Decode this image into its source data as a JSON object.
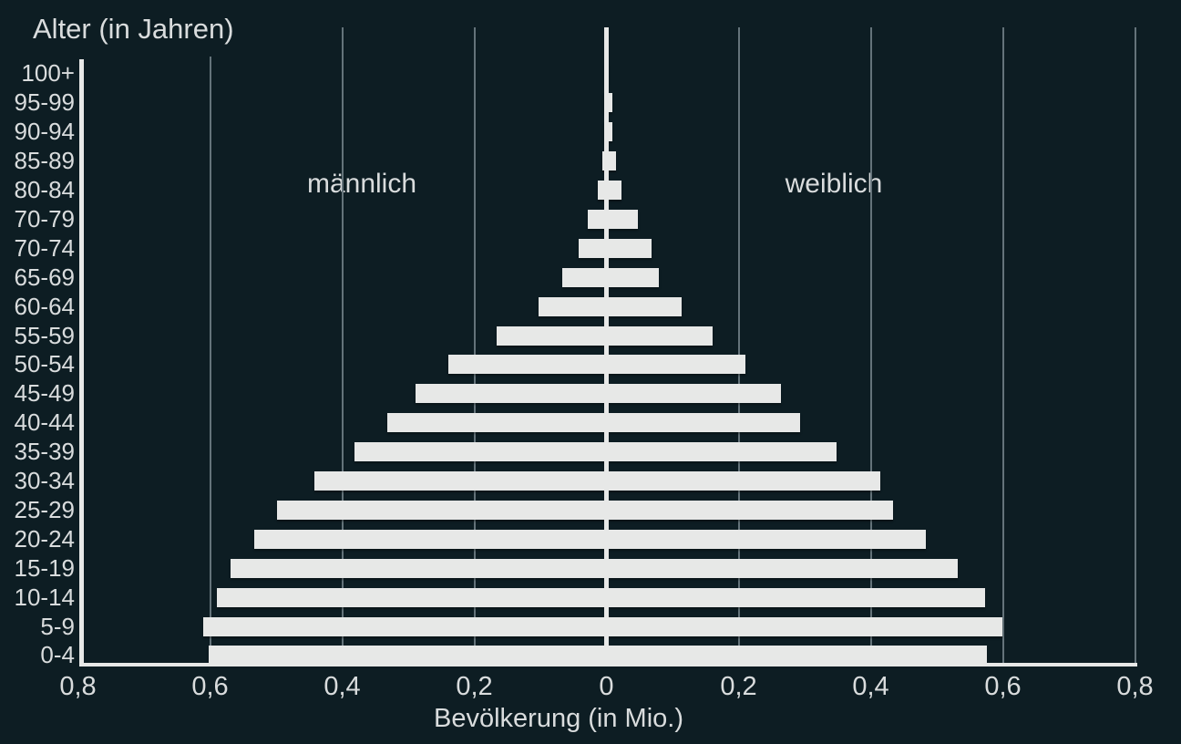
{
  "title": "Alter (in Jahren)",
  "x_axis_title": "Bevölkerung (in Mio.)",
  "side_labels": {
    "left": "männlich",
    "right": "weiblich"
  },
  "colors": {
    "background": "#0d1d23",
    "bar": "#e7e8e7",
    "text": "#d9dcdd",
    "grid": "#64737a",
    "axis": "#e7e8e7"
  },
  "chart_data": {
    "type": "bar",
    "variant": "population-pyramid",
    "title": "Alter (in Jahren)",
    "xlabel": "Bevölkerung (in Mio.)",
    "unit": "Mio.",
    "xlim": [
      -0.8,
      0.8
    ],
    "grid": true,
    "categories": [
      "100+",
      "95-99",
      "90-94",
      "85-89",
      "80-84",
      "70-79",
      "70-74",
      "65-69",
      "60-64",
      "55-59",
      "50-54",
      "45-49",
      "40-44",
      "35-39",
      "30-34",
      "25-29",
      "20-24",
      "15-19",
      "10-14",
      "5-9",
      "0-4"
    ],
    "series": [
      {
        "name": "männlich",
        "side": "left",
        "values": [
          0.002,
          0.003,
          0.004,
          0.006,
          0.013,
          0.028,
          0.042,
          0.067,
          0.103,
          0.166,
          0.239,
          0.289,
          0.332,
          0.381,
          0.442,
          0.499,
          0.533,
          0.569,
          0.59,
          0.61,
          0.602
        ]
      },
      {
        "name": "weiblich",
        "side": "right",
        "values": [
          0.002,
          0.009,
          0.009,
          0.014,
          0.023,
          0.048,
          0.068,
          0.079,
          0.114,
          0.161,
          0.21,
          0.264,
          0.293,
          0.348,
          0.414,
          0.434,
          0.483,
          0.532,
          0.573,
          0.599,
          0.576
        ]
      }
    ],
    "x_ticks": [
      {
        "value": -0.8,
        "label": "0,8"
      },
      {
        "value": -0.6,
        "label": "0,6"
      },
      {
        "value": -0.4,
        "label": "0,4"
      },
      {
        "value": -0.2,
        "label": "0,2"
      },
      {
        "value": 0,
        "label": "0"
      },
      {
        "value": 0.2,
        "label": "0,2"
      },
      {
        "value": 0.4,
        "label": "0,4"
      },
      {
        "value": 0.6,
        "label": "0,6"
      },
      {
        "value": 0.8,
        "label": "0,8"
      }
    ],
    "gridline_values": [
      -0.6,
      -0.4,
      -0.2,
      0.2,
      0.4,
      0.6,
      0.8
    ]
  }
}
